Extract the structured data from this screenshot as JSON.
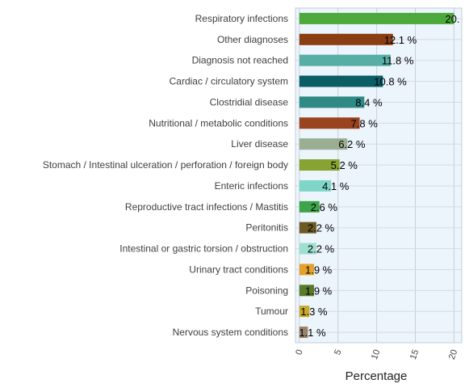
{
  "chart_data": {
    "type": "bar",
    "orientation": "horizontal",
    "xlabel": "Percentage",
    "ylabel": "",
    "xlim": [
      -0.5,
      21
    ],
    "xticks": [
      0,
      5,
      10,
      15,
      20
    ],
    "grid": true,
    "categories": [
      "Respiratory infections",
      "Other diagnoses",
      "Diagnosis not reached",
      "Cardiac / circulatory system",
      "Clostridial disease",
      "Nutritional / metabolic conditions",
      "Liver disease",
      "Stomach / Intestinal ulceration / perforation / foreign body",
      "Enteric infections",
      "Reproductive tract infections / Mastitis",
      "Peritonitis",
      "Intestinal or gastric torsion / obstruction",
      "Urinary tract conditions",
      "Poisoning",
      "Tumour",
      "Nervous system conditions"
    ],
    "values": [
      20.0,
      12.1,
      11.8,
      10.8,
      8.4,
      7.8,
      6.2,
      5.2,
      4.1,
      2.6,
      2.2,
      2.2,
      1.9,
      1.9,
      1.3,
      1.1
    ],
    "value_labels": [
      "20.",
      "12.1 %",
      "11.8 %",
      "10.8 %",
      "8.4 %",
      "7.8 %",
      "6.2 %",
      "5.2 %",
      "4.1 %",
      "2.6 %",
      "2.2 %",
      "2.2 %",
      "1.9 %",
      "1.9 %",
      "1.3 %",
      "1.1 %"
    ],
    "colors": [
      "#4ea93d",
      "#8b3e12",
      "#56aea5",
      "#0b5e66",
      "#2f8a85",
      "#9a4320",
      "#9aae91",
      "#87a332",
      "#7fd6c8",
      "#3ea44a",
      "#6b5a23",
      "#9fdfcf",
      "#e4a22c",
      "#587a2a",
      "#c7a92e",
      "#9a826a"
    ]
  }
}
